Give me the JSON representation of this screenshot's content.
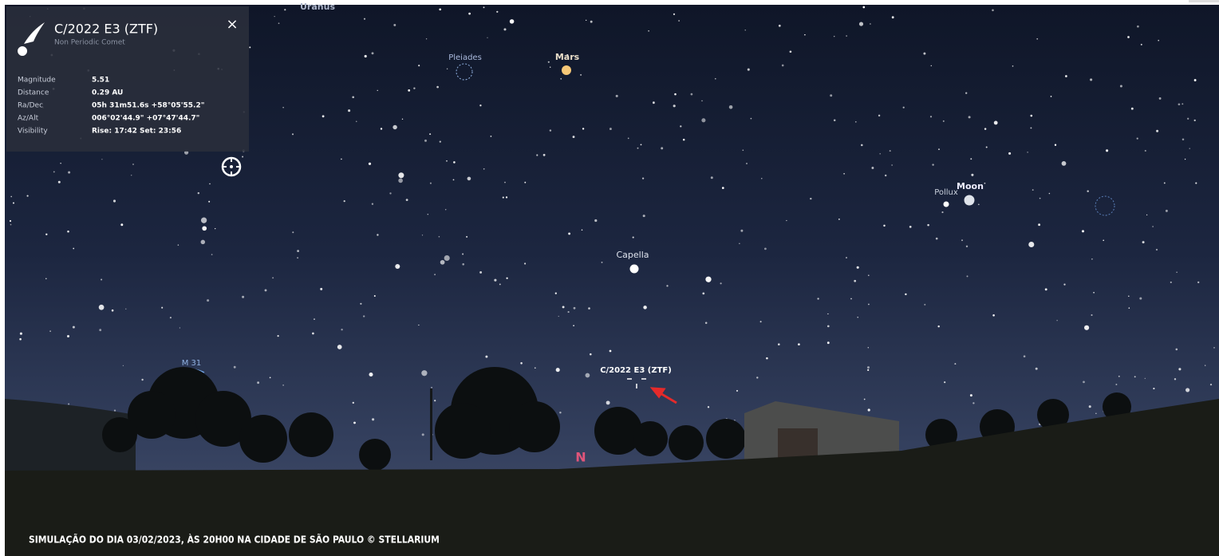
{
  "panel": {
    "title": "C/2022 E3 (ZTF)",
    "subtitle": "Non Periodic Comet",
    "rows": [
      {
        "label": "Magnitude",
        "value": "5.51"
      },
      {
        "label": "Distance",
        "value": "0.29 AU"
      },
      {
        "label": "Ra/Dec",
        "value": "05h 31m51.6s  +58°05'55.2\""
      },
      {
        "label": "Az/Alt",
        "value": "006°02'44.9\"  +07°47'44.7\""
      },
      {
        "label": "Visibility",
        "value": "Rise: 17:42   Set: 23:56"
      }
    ]
  },
  "sky_labels": {
    "uranus": "Uranus",
    "pleiades": "Pleiades",
    "mars": "Mars",
    "pollux": "Pollux",
    "moon": "Moon",
    "capella": "Capella",
    "m31": "M 31",
    "comet": "C/2022 E3 (ZTF)",
    "north": "N"
  },
  "caption": "SIMULAÇÃO DO DIA 03/02/2023, ÀS 20H00 NA CIDADE DE SÃO PAULO © STELLARIUM"
}
